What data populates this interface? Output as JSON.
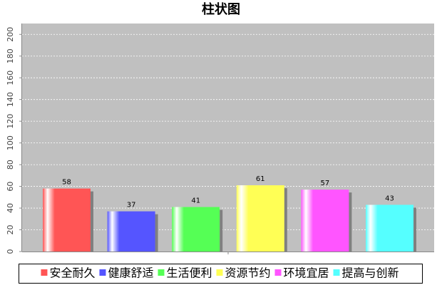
{
  "chart_data": {
    "type": "bar",
    "title": "柱状图",
    "categories": [
      null
    ],
    "series": [
      {
        "name": "安全耐久",
        "color": "#ff5555",
        "values": [
          58
        ]
      },
      {
        "name": "健康舒适",
        "color": "#5555ff",
        "values": [
          37
        ]
      },
      {
        "name": "生活便利",
        "color": "#55ff55",
        "values": [
          41
        ]
      },
      {
        "name": "资源节约",
        "color": "#ffff55",
        "values": [
          61
        ]
      },
      {
        "name": "环境宜居",
        "color": "#ff55ff",
        "values": [
          57
        ]
      },
      {
        "name": "提高与创新",
        "color": "#55ffff",
        "values": [
          43
        ]
      }
    ],
    "ylim": [
      0,
      210
    ],
    "yticks": [
      0,
      20,
      40,
      60,
      80,
      100,
      120,
      140,
      160,
      180,
      200
    ],
    "grid": true,
    "legend": "bottom"
  }
}
